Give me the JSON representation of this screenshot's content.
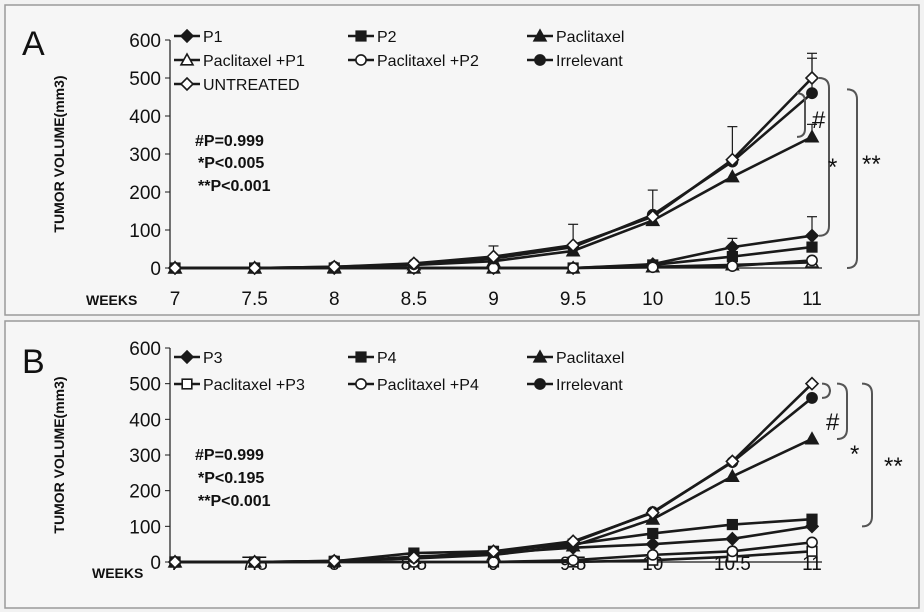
{
  "chart_data": [
    {
      "type": "line",
      "panel": "A",
      "ylabel": "TUMOR VOLUME(mm3)",
      "xlabel": "WEEKS",
      "categories": [
        "7",
        "7.5",
        "8",
        "8.5",
        "9",
        "9.5",
        "10",
        "10.5",
        "11"
      ],
      "yticks": [
        "0",
        "100",
        "200",
        "300",
        "400",
        "500",
        "600"
      ],
      "ylim": [
        0,
        600
      ],
      "legend_position": "top",
      "series": [
        {
          "name": "P1",
          "marker": "diamond-filled",
          "values": [
            0,
            0,
            0,
            0,
            0,
            0,
            10,
            55,
            85
          ]
        },
        {
          "name": "P2",
          "marker": "square-filled",
          "values": [
            0,
            0,
            0,
            0,
            0,
            0,
            8,
            30,
            55
          ]
        },
        {
          "name": "Paclitaxel",
          "marker": "triangle-filled",
          "values": [
            0,
            0,
            2,
            8,
            18,
            45,
            125,
            240,
            345
          ]
        },
        {
          "name": "Paclitaxel +P1",
          "marker": "triangle-open",
          "values": [
            0,
            0,
            0,
            0,
            0,
            0,
            3,
            8,
            15
          ]
        },
        {
          "name": "Paclitaxel +P2",
          "marker": "circle-open",
          "values": [
            0,
            0,
            0,
            0,
            0,
            0,
            2,
            5,
            20
          ]
        },
        {
          "name": "Irrelevant",
          "marker": "circle-filled",
          "values": [
            0,
            0,
            3,
            10,
            25,
            55,
            140,
            280,
            460
          ]
        },
        {
          "name": "UNTREATED",
          "marker": "diamond-open",
          "values": [
            0,
            0,
            3,
            12,
            30,
            60,
            135,
            285,
            500
          ]
        }
      ],
      "error_bars": [
        {
          "x": "9",
          "y": 30,
          "top": 58
        },
        {
          "x": "9.5",
          "y": 60,
          "top": 115
        },
        {
          "x": "10",
          "y": 140,
          "top": 205
        },
        {
          "x": "10.5",
          "y": 285,
          "top": 372
        },
        {
          "x": "11",
          "y": 500,
          "top": 565
        },
        {
          "x": "11",
          "y": 460,
          "top": 552
        },
        {
          "x": "11",
          "y": 345,
          "top": 378
        },
        {
          "x": "11",
          "y": 85,
          "top": 135
        },
        {
          "x": "10.5",
          "y": 55,
          "top": 78
        }
      ],
      "stats": [
        "#P=0.999",
        "*P<0.005",
        "**P<0.001"
      ],
      "significance_marks": [
        "#",
        "*",
        "**"
      ]
    },
    {
      "type": "line",
      "panel": "B",
      "ylabel": "TUMOR VOLUME(mm3)",
      "xlabel": "WEEKS",
      "categories": [
        "7",
        "7.5",
        "8",
        "8.5",
        "9",
        "9.5",
        "10",
        "10.5",
        "11"
      ],
      "yticks": [
        "0",
        "100",
        "200",
        "300",
        "400",
        "500",
        "600"
      ],
      "ylim": [
        0,
        600
      ],
      "legend_position": "top",
      "series": [
        {
          "name": "P3",
          "marker": "diamond-filled",
          "values": [
            0,
            0,
            0,
            15,
            25,
            40,
            50,
            65,
            100
          ]
        },
        {
          "name": "P4",
          "marker": "square-filled",
          "values": [
            0,
            0,
            2,
            25,
            30,
            50,
            80,
            105,
            120
          ]
        },
        {
          "name": "Paclitaxel",
          "marker": "triangle-filled",
          "values": [
            0,
            0,
            2,
            10,
            20,
            45,
            120,
            240,
            345
          ]
        },
        {
          "name": "Paclitaxel +P3",
          "marker": "square-open",
          "values": [
            0,
            0,
            0,
            0,
            0,
            0,
            5,
            15,
            30
          ]
        },
        {
          "name": "Paclitaxel +P4",
          "marker": "circle-open",
          "values": [
            0,
            0,
            0,
            0,
            0,
            5,
            20,
            30,
            55
          ]
        },
        {
          "name": "Irrelevant",
          "marker": "circle-filled",
          "values": [
            0,
            0,
            3,
            12,
            28,
            55,
            140,
            280,
            460
          ]
        },
        {
          "name": "",
          "marker": "diamond-open",
          "values": [
            0,
            0,
            3,
            12,
            30,
            58,
            138,
            282,
            500
          ]
        }
      ],
      "stats": [
        "#P=0.999",
        "*P<0.195",
        "**P<0.001"
      ],
      "significance_marks": [
        "#",
        "*",
        "**"
      ]
    }
  ],
  "colors": {
    "line": "#1a1a1a",
    "background": "#f2f2f2",
    "panel_border": "#9a9a9a"
  }
}
